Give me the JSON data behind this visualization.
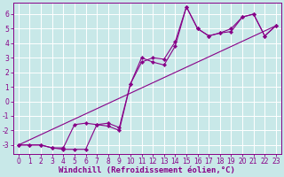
{
  "background_color": "#c8e8e8",
  "grid_color": "#ffffff",
  "line_color": "#880088",
  "xlabel": "Windchill (Refroidissement éolien,°C)",
  "xlabel_fontsize": 6.5,
  "tick_fontsize": 5.5,
  "xlim": [
    -0.5,
    23.5
  ],
  "ylim": [
    -3.6,
    6.8
  ],
  "yticks": [
    -3,
    -2,
    -1,
    0,
    1,
    2,
    3,
    4,
    5,
    6
  ],
  "xticks": [
    0,
    1,
    2,
    3,
    4,
    5,
    6,
    7,
    8,
    9,
    10,
    11,
    12,
    13,
    14,
    15,
    16,
    17,
    18,
    19,
    20,
    21,
    22,
    23
  ],
  "line1_x": [
    0,
    1,
    2,
    3,
    4,
    5,
    6,
    7,
    8,
    9,
    10,
    11,
    12,
    13,
    14,
    15,
    16,
    17,
    18,
    19,
    20,
    21,
    22,
    23
  ],
  "line1_y": [
    -3.0,
    -3.0,
    -3.0,
    -3.2,
    -3.3,
    -3.3,
    -3.3,
    -1.6,
    -1.5,
    -1.8,
    1.2,
    2.7,
    3.0,
    2.9,
    4.1,
    6.5,
    5.0,
    4.5,
    4.7,
    4.8,
    5.8,
    6.0,
    4.5,
    5.2
  ],
  "line2_x": [
    0,
    1,
    2,
    3,
    4,
    5,
    6,
    7,
    8,
    9,
    10,
    11,
    12,
    13,
    14,
    15,
    16,
    17,
    18,
    19,
    20,
    21,
    22,
    23
  ],
  "line2_y": [
    -3.0,
    -3.0,
    -3.0,
    -3.2,
    -3.2,
    -1.6,
    -1.5,
    -1.6,
    -1.7,
    -2.0,
    1.2,
    3.0,
    2.7,
    2.5,
    3.8,
    6.5,
    5.0,
    4.5,
    4.7,
    5.0,
    5.8,
    6.0,
    4.5,
    5.2
  ],
  "line3_x": [
    0,
    23
  ],
  "line3_y": [
    -3.0,
    5.2
  ]
}
